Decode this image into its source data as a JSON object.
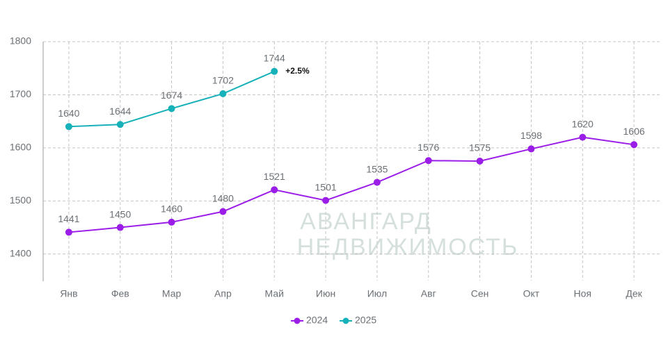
{
  "chart_data": {
    "type": "line",
    "categories": [
      "Янв",
      "Фев",
      "Мар",
      "Апр",
      "Май",
      "Июн",
      "Июл",
      "Авг",
      "Сен",
      "Окт",
      "Ноя",
      "Дек"
    ],
    "series": [
      {
        "name": "2024",
        "color": "#9b1ee8",
        "values": [
          1441,
          1450,
          1460,
          1480,
          1521,
          1501,
          1535,
          1576,
          1575,
          1598,
          1620,
          1606
        ]
      },
      {
        "name": "2025",
        "color": "#17b1b9",
        "values": [
          1640,
          1644,
          1674,
          1702,
          1744,
          null,
          null,
          null,
          null,
          null,
          null,
          null
        ]
      }
    ],
    "annotation": "+2.5%",
    "watermark": [
      "АВАНГАРД",
      "НЕДВИЖИМОСТЬ"
    ],
    "ylim": [
      1350,
      1800
    ],
    "yticks": [
      1400,
      1500,
      1600,
      1700,
      1800
    ],
    "grid": true,
    "legend": "bottom"
  }
}
